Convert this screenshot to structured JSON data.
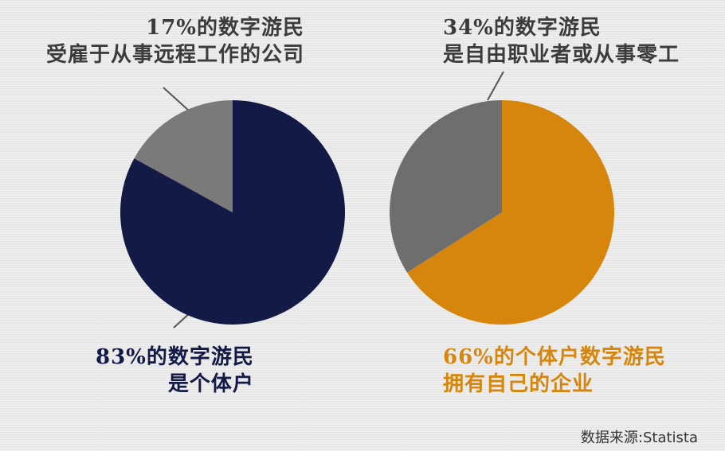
{
  "chart_data": [
    {
      "type": "pie",
      "slices": [
        {
          "label": "17%的数字游民受雇于从事远程工作的公司",
          "value": 17,
          "color": "#7a7a7a"
        },
        {
          "label": "83%的数字游民是个体户",
          "value": 83,
          "color": "#131a46"
        }
      ]
    },
    {
      "type": "pie",
      "slices": [
        {
          "label": "34%的数字游民是自由职业者或从事零工",
          "value": 34,
          "color": "#6e6e6e"
        },
        {
          "label": "66%的个体户数字游民拥有自己的企业",
          "value": 66,
          "color": "#d6860c"
        }
      ]
    }
  ],
  "labels": {
    "left_top": [
      "17%的数字游民",
      "受雇于从事远程工作的公司"
    ],
    "left_bottom": [
      "83%的数字游民",
      "是个体户"
    ],
    "right_top": [
      "34%的数字游民",
      "是自由职业者或从事零工"
    ],
    "right_bottom": [
      "66%的个体户数字游民",
      "拥有自己的企业"
    ]
  },
  "colors": {
    "navy": "#131a46",
    "gray": "#7a7a7a",
    "orange": "#d6860c",
    "text_gray": "#3c3c3c"
  },
  "source": "数据来源:Statista"
}
